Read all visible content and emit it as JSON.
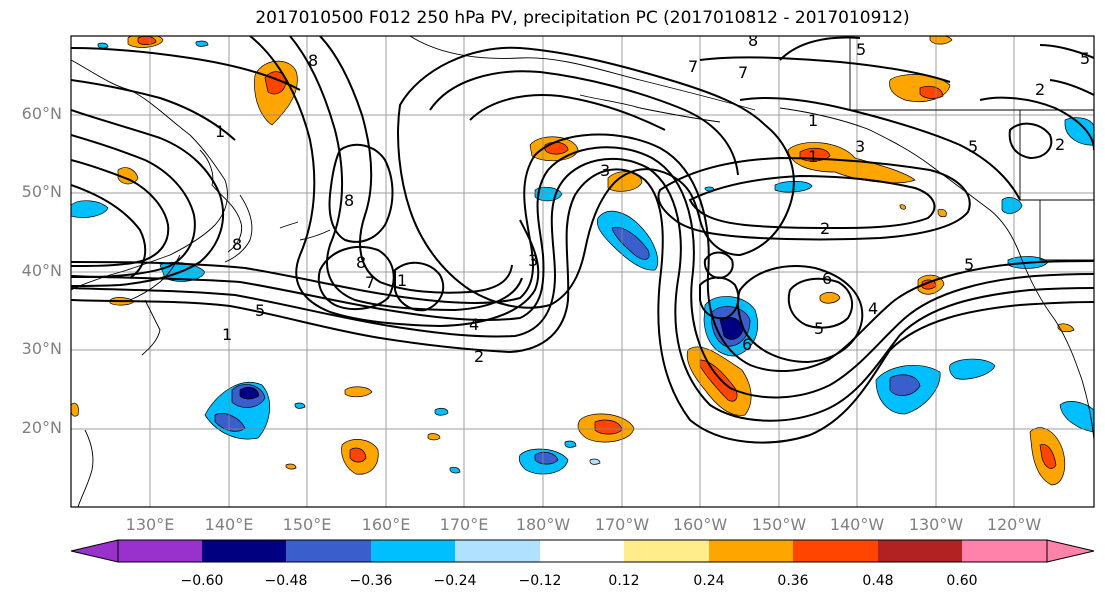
{
  "title": "2017010500 F012 250 hPa PV, precipitation PC (2017010812 - 2017010912)",
  "lat_labels": [
    "60°N",
    "50°N",
    "40°N",
    "30°N",
    "20°N"
  ],
  "lon_labels": [
    "130°E",
    "140°E",
    "150°E",
    "160°E",
    "170°E",
    "180°W",
    "170°W",
    "160°W",
    "150°W",
    "140°W",
    "130°W",
    "120°W"
  ],
  "colorbar": {
    "labels": [
      "−0.60",
      "−0.48",
      "−0.36",
      "−0.24",
      "−0.12",
      "0.12",
      "0.24",
      "0.36",
      "0.48",
      "0.60"
    ],
    "colors": [
      "#9932CC",
      "#000080",
      "#3A5FCD",
      "#00BFFF",
      "#B0E2FF",
      "#FFFFFF",
      "#FFEC8B",
      "#FFA500",
      "#FF4500",
      "#B22222",
      "#FF82AB"
    ]
  },
  "contour_labels": [
    "8",
    "5",
    "5",
    "7",
    "8",
    "1",
    "7",
    "1",
    "5",
    "2",
    "3",
    "8",
    "8",
    "7",
    "1",
    "4",
    "2",
    "3",
    "2",
    "8",
    "1",
    "3",
    "2",
    "6",
    "4",
    "5",
    "6",
    "5",
    "5",
    "1"
  ]
}
